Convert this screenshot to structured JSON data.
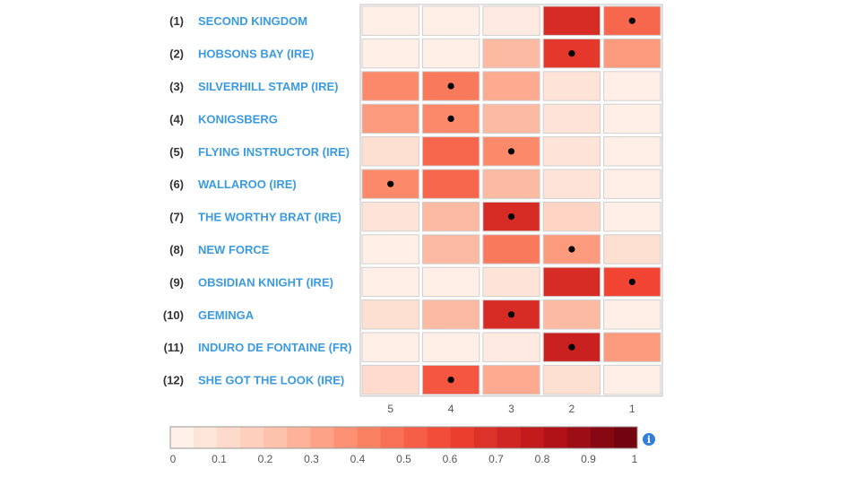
{
  "chart_data": {
    "type": "heatmap",
    "columns": [
      "5",
      "4",
      "3",
      "2",
      "1"
    ],
    "rows": [
      {
        "num": "(1)",
        "name": "SECOND KINGDOM",
        "values": [
          0.03,
          0.03,
          0.05,
          0.7,
          0.5
        ],
        "marker": 4
      },
      {
        "num": "(2)",
        "name": "HOBSONS BAY (IRE)",
        "values": [
          0.03,
          0.03,
          0.25,
          0.65,
          0.35
        ],
        "marker": 3
      },
      {
        "num": "(3)",
        "name": "SILVERHILL STAMP (IRE)",
        "values": [
          0.4,
          0.45,
          0.3,
          0.08,
          0.03
        ],
        "marker": 1
      },
      {
        "num": "(4)",
        "name": "KONIGSBERG",
        "values": [
          0.35,
          0.4,
          0.25,
          0.08,
          0.03
        ],
        "marker": 1
      },
      {
        "num": "(5)",
        "name": "FLYING INSTRUCTOR (IRE)",
        "values": [
          0.1,
          0.5,
          0.4,
          0.08,
          0.03
        ],
        "marker": 2
      },
      {
        "num": "(6)",
        "name": "WALLAROO (IRE)",
        "values": [
          0.4,
          0.5,
          0.25,
          0.08,
          0.03
        ],
        "marker": 0
      },
      {
        "num": "(7)",
        "name": "THE WORTHY BRAT (IRE)",
        "values": [
          0.08,
          0.25,
          0.7,
          0.15,
          0.03
        ],
        "marker": 2
      },
      {
        "num": "(8)",
        "name": "NEW FORCE",
        "values": [
          0.03,
          0.25,
          0.45,
          0.35,
          0.1
        ],
        "marker": 3
      },
      {
        "num": "(9)",
        "name": "OBSIDIAN KNIGHT (IRE)",
        "values": [
          0.03,
          0.03,
          0.08,
          0.7,
          0.6
        ],
        "marker": 4
      },
      {
        "num": "(10)",
        "name": "GEMINGA",
        "values": [
          0.1,
          0.25,
          0.7,
          0.25,
          0.03
        ],
        "marker": 2
      },
      {
        "num": "(11)",
        "name": "INDURO DE FONTAINE (FR)",
        "values": [
          0.03,
          0.03,
          0.05,
          0.75,
          0.35
        ],
        "marker": 3
      },
      {
        "num": "(12)",
        "name": "SHE GOT THE LOOK (IRE)",
        "values": [
          0.12,
          0.55,
          0.3,
          0.1,
          0.03
        ],
        "marker": 1
      }
    ],
    "colorscale": {
      "range": [
        0,
        1
      ],
      "ticks": [
        "0",
        "0.1",
        "0.2",
        "0.3",
        "0.4",
        "0.5",
        "0.6",
        "0.7",
        "0.8",
        "0.9",
        "1"
      ],
      "stops": [
        "#fff5f0",
        "#fdcab5",
        "#fc8a6a",
        "#f14432",
        "#bc141a",
        "#67000d"
      ]
    },
    "legend_position": "bottom"
  },
  "legend_info_icon": "info-icon"
}
